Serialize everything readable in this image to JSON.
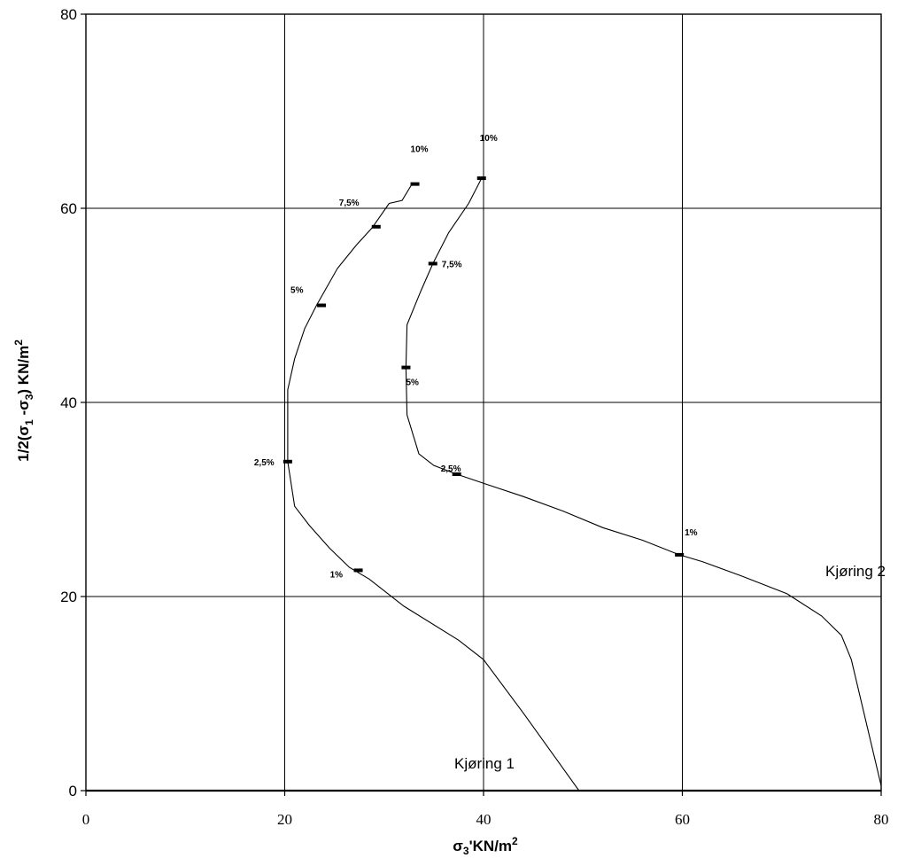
{
  "chart_data": {
    "type": "line",
    "title": "",
    "xlabel": {
      "base": "σ",
      "sub": "3",
      "rest": "'KN/m",
      "sup": "2"
    },
    "ylabel": {
      "prefix": "1/2(σ",
      "sub1": "1",
      "mid": " -σ",
      "sub2": "3",
      "rest": ")  KN/m",
      "sup": "2"
    },
    "xlim": [
      0,
      80
    ],
    "ylim": [
      0,
      80
    ],
    "xticks": [
      0,
      20,
      40,
      60,
      80
    ],
    "yticks": [
      0,
      20,
      40,
      60,
      80
    ],
    "grid": true,
    "series": [
      {
        "name": "Kjøring 1",
        "points": [
          [
            49.6,
            0
          ],
          [
            44,
            8
          ],
          [
            40,
            13.5
          ],
          [
            37.5,
            15.5
          ],
          [
            32,
            19
          ],
          [
            28.5,
            21.8
          ],
          [
            26.5,
            23
          ],
          [
            24.5,
            25
          ],
          [
            22.5,
            27.3
          ],
          [
            21,
            29.3
          ],
          [
            20.3,
            33.9
          ],
          [
            20.3,
            41.3
          ],
          [
            21,
            44.5
          ],
          [
            22,
            47.6
          ],
          [
            23.2,
            50
          ],
          [
            25.3,
            53.8
          ],
          [
            27.2,
            56.2
          ],
          [
            28.8,
            58
          ],
          [
            30.5,
            60.5
          ],
          [
            31.8,
            60.8
          ],
          [
            32.8,
            62.5
          ]
        ],
        "markers": [
          {
            "x": 27.4,
            "y": 22.7,
            "label": "1%"
          },
          {
            "x": 20.3,
            "y": 33.9,
            "label": "2,5%"
          },
          {
            "x": 23.7,
            "y": 50,
            "label": "5%"
          },
          {
            "x": 29.2,
            "y": 58.1,
            "label": "7,5%"
          },
          {
            "x": 33.1,
            "y": 62.5,
            "label": "10%"
          }
        ]
      },
      {
        "name": "Kjøring 2",
        "points": [
          [
            80,
            0.5
          ],
          [
            77,
            13.5
          ],
          [
            76,
            16
          ],
          [
            74,
            18
          ],
          [
            70.5,
            20.3
          ],
          [
            66,
            22.1
          ],
          [
            62,
            23.6
          ],
          [
            59.7,
            24.3
          ],
          [
            56,
            25.8
          ],
          [
            52,
            27.1
          ],
          [
            48,
            28.8
          ],
          [
            44,
            30.3
          ],
          [
            40.5,
            31.5
          ],
          [
            37.3,
            32.6
          ],
          [
            35,
            33.5
          ],
          [
            33.5,
            34.7
          ],
          [
            32.3,
            38.7
          ],
          [
            32.2,
            43.6
          ],
          [
            32.3,
            48
          ],
          [
            33.7,
            51.5
          ],
          [
            34.9,
            54.3
          ],
          [
            36.5,
            57.5
          ],
          [
            38.5,
            60.5
          ],
          [
            39.8,
            63.1
          ]
        ],
        "markers": [
          {
            "x": 59.7,
            "y": 24.3,
            "label": "1%"
          },
          {
            "x": 37.3,
            "y": 32.6,
            "label": "2,5%"
          },
          {
            "x": 32.2,
            "y": 43.6,
            "label": "5%"
          },
          {
            "x": 34.9,
            "y": 54.3,
            "label": "7,5%"
          },
          {
            "x": 39.8,
            "y": 63.1,
            "label": "10%"
          }
        ]
      }
    ]
  }
}
